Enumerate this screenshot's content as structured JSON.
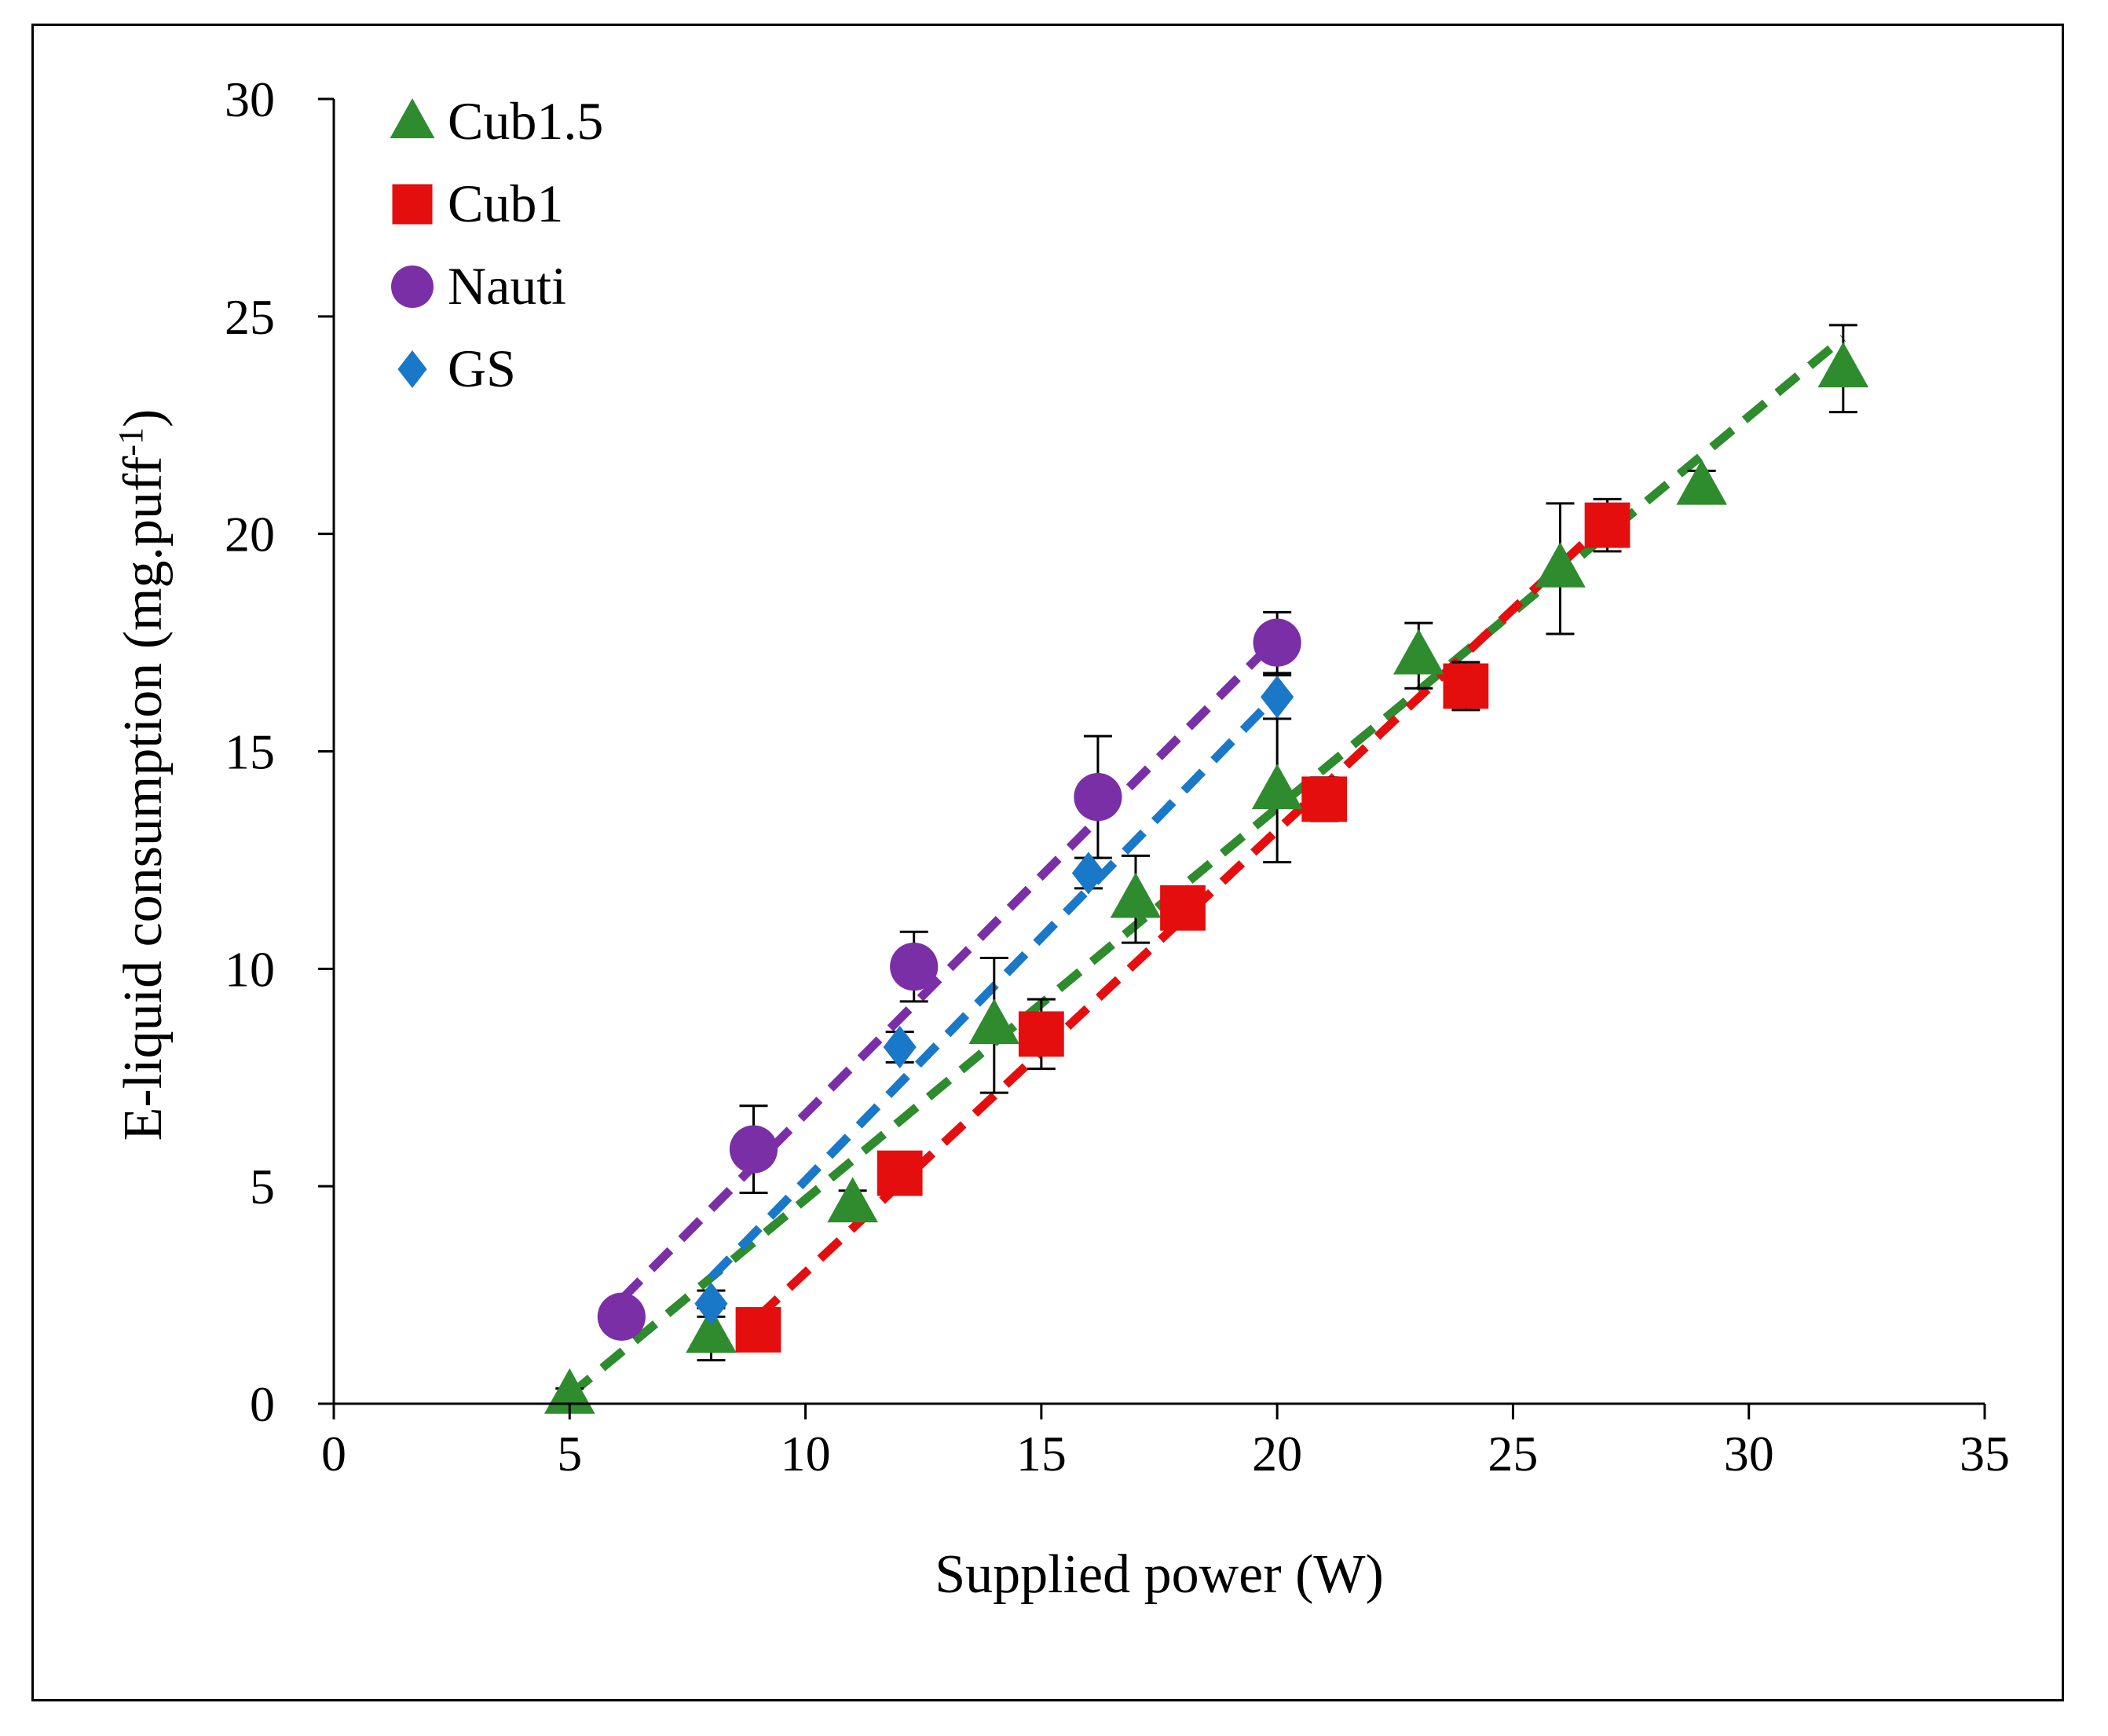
{
  "chart_data": {
    "type": "scatter",
    "title": "",
    "xlabel": "Supplied power (W)",
    "ylabel_main": "E-liquid consumption (mg.puff",
    "ylabel_sup": "-1",
    "ylabel_close": ")",
    "xlim": [
      0,
      35
    ],
    "ylim": [
      0,
      30
    ],
    "x_ticks": [
      0,
      5,
      10,
      15,
      20,
      25,
      30,
      35
    ],
    "y_ticks": [
      0,
      5,
      10,
      15,
      20,
      25,
      30
    ],
    "grid": false,
    "legend_position": "top-left",
    "series": [
      {
        "name": "Cub1.5",
        "marker": "triangle",
        "color": "#2e8b2e",
        "points": [
          {
            "x": 5,
            "y": 0.2,
            "err": 0.15
          },
          {
            "x": 8,
            "y": 1.6,
            "err": 0.6
          },
          {
            "x": 11,
            "y": 4.6,
            "err": 0.3
          },
          {
            "x": 14,
            "y": 8.7,
            "err": 1.55
          },
          {
            "x": 17,
            "y": 11.6,
            "err": 1.0
          },
          {
            "x": 20,
            "y": 14.1,
            "err": 1.65
          },
          {
            "x": 23,
            "y": 17.2,
            "err": 0.75
          },
          {
            "x": 26,
            "y": 19.2,
            "err": 1.5
          },
          {
            "x": 29,
            "y": 21.1,
            "err": 0.35
          },
          {
            "x": 32,
            "y": 23.8,
            "err": 1.0
          }
        ],
        "trend": {
          "x0": 5,
          "y0": 0.2,
          "x1": 32,
          "y1": 24.5
        }
      },
      {
        "name": "Cub1",
        "marker": "square",
        "color": "#e40e0e",
        "points": [
          {
            "x": 9,
            "y": 1.7,
            "err": 0.2
          },
          {
            "x": 12,
            "y": 5.3,
            "err": 0.3
          },
          {
            "x": 15,
            "y": 8.5,
            "err": 0.8
          },
          {
            "x": 18,
            "y": 11.4,
            "err": 0.3
          },
          {
            "x": 21,
            "y": 13.9,
            "err": 0.5
          },
          {
            "x": 24,
            "y": 16.5,
            "err": 0.55
          },
          {
            "x": 27,
            "y": 20.2,
            "err": 0.6
          }
        ],
        "trend": {
          "x0": 9,
          "y0": 2.0,
          "x1": 27,
          "y1": 20.3
        }
      },
      {
        "name": "Nauti",
        "marker": "circle",
        "color": "#7b2fa6",
        "points": [
          {
            "x": 6.1,
            "y": 2.0,
            "err": 0
          },
          {
            "x": 8.9,
            "y": 5.85,
            "err": 1.0
          },
          {
            "x": 12.3,
            "y": 10.05,
            "err": 0.8
          },
          {
            "x": 16.2,
            "y": 13.95,
            "err": 1.4
          },
          {
            "x": 20,
            "y": 17.5,
            "err": 0.7
          }
        ],
        "trend": {
          "x0": 6.1,
          "y0": 2.4,
          "x1": 20,
          "y1": 17.6
        }
      },
      {
        "name": "GS",
        "marker": "diamond",
        "color": "#1a78c8",
        "points": [
          {
            "x": 8,
            "y": 2.3,
            "err": 0.3
          },
          {
            "x": 12,
            "y": 8.2,
            "err": 0.35
          },
          {
            "x": 16,
            "y": 12.2,
            "err": 0.35
          },
          {
            "x": 20,
            "y": 16.25,
            "err": 0.5
          }
        ],
        "trend": {
          "x0": 8,
          "y0": 2.9,
          "x1": 20,
          "y1": 16.3
        }
      }
    ]
  }
}
